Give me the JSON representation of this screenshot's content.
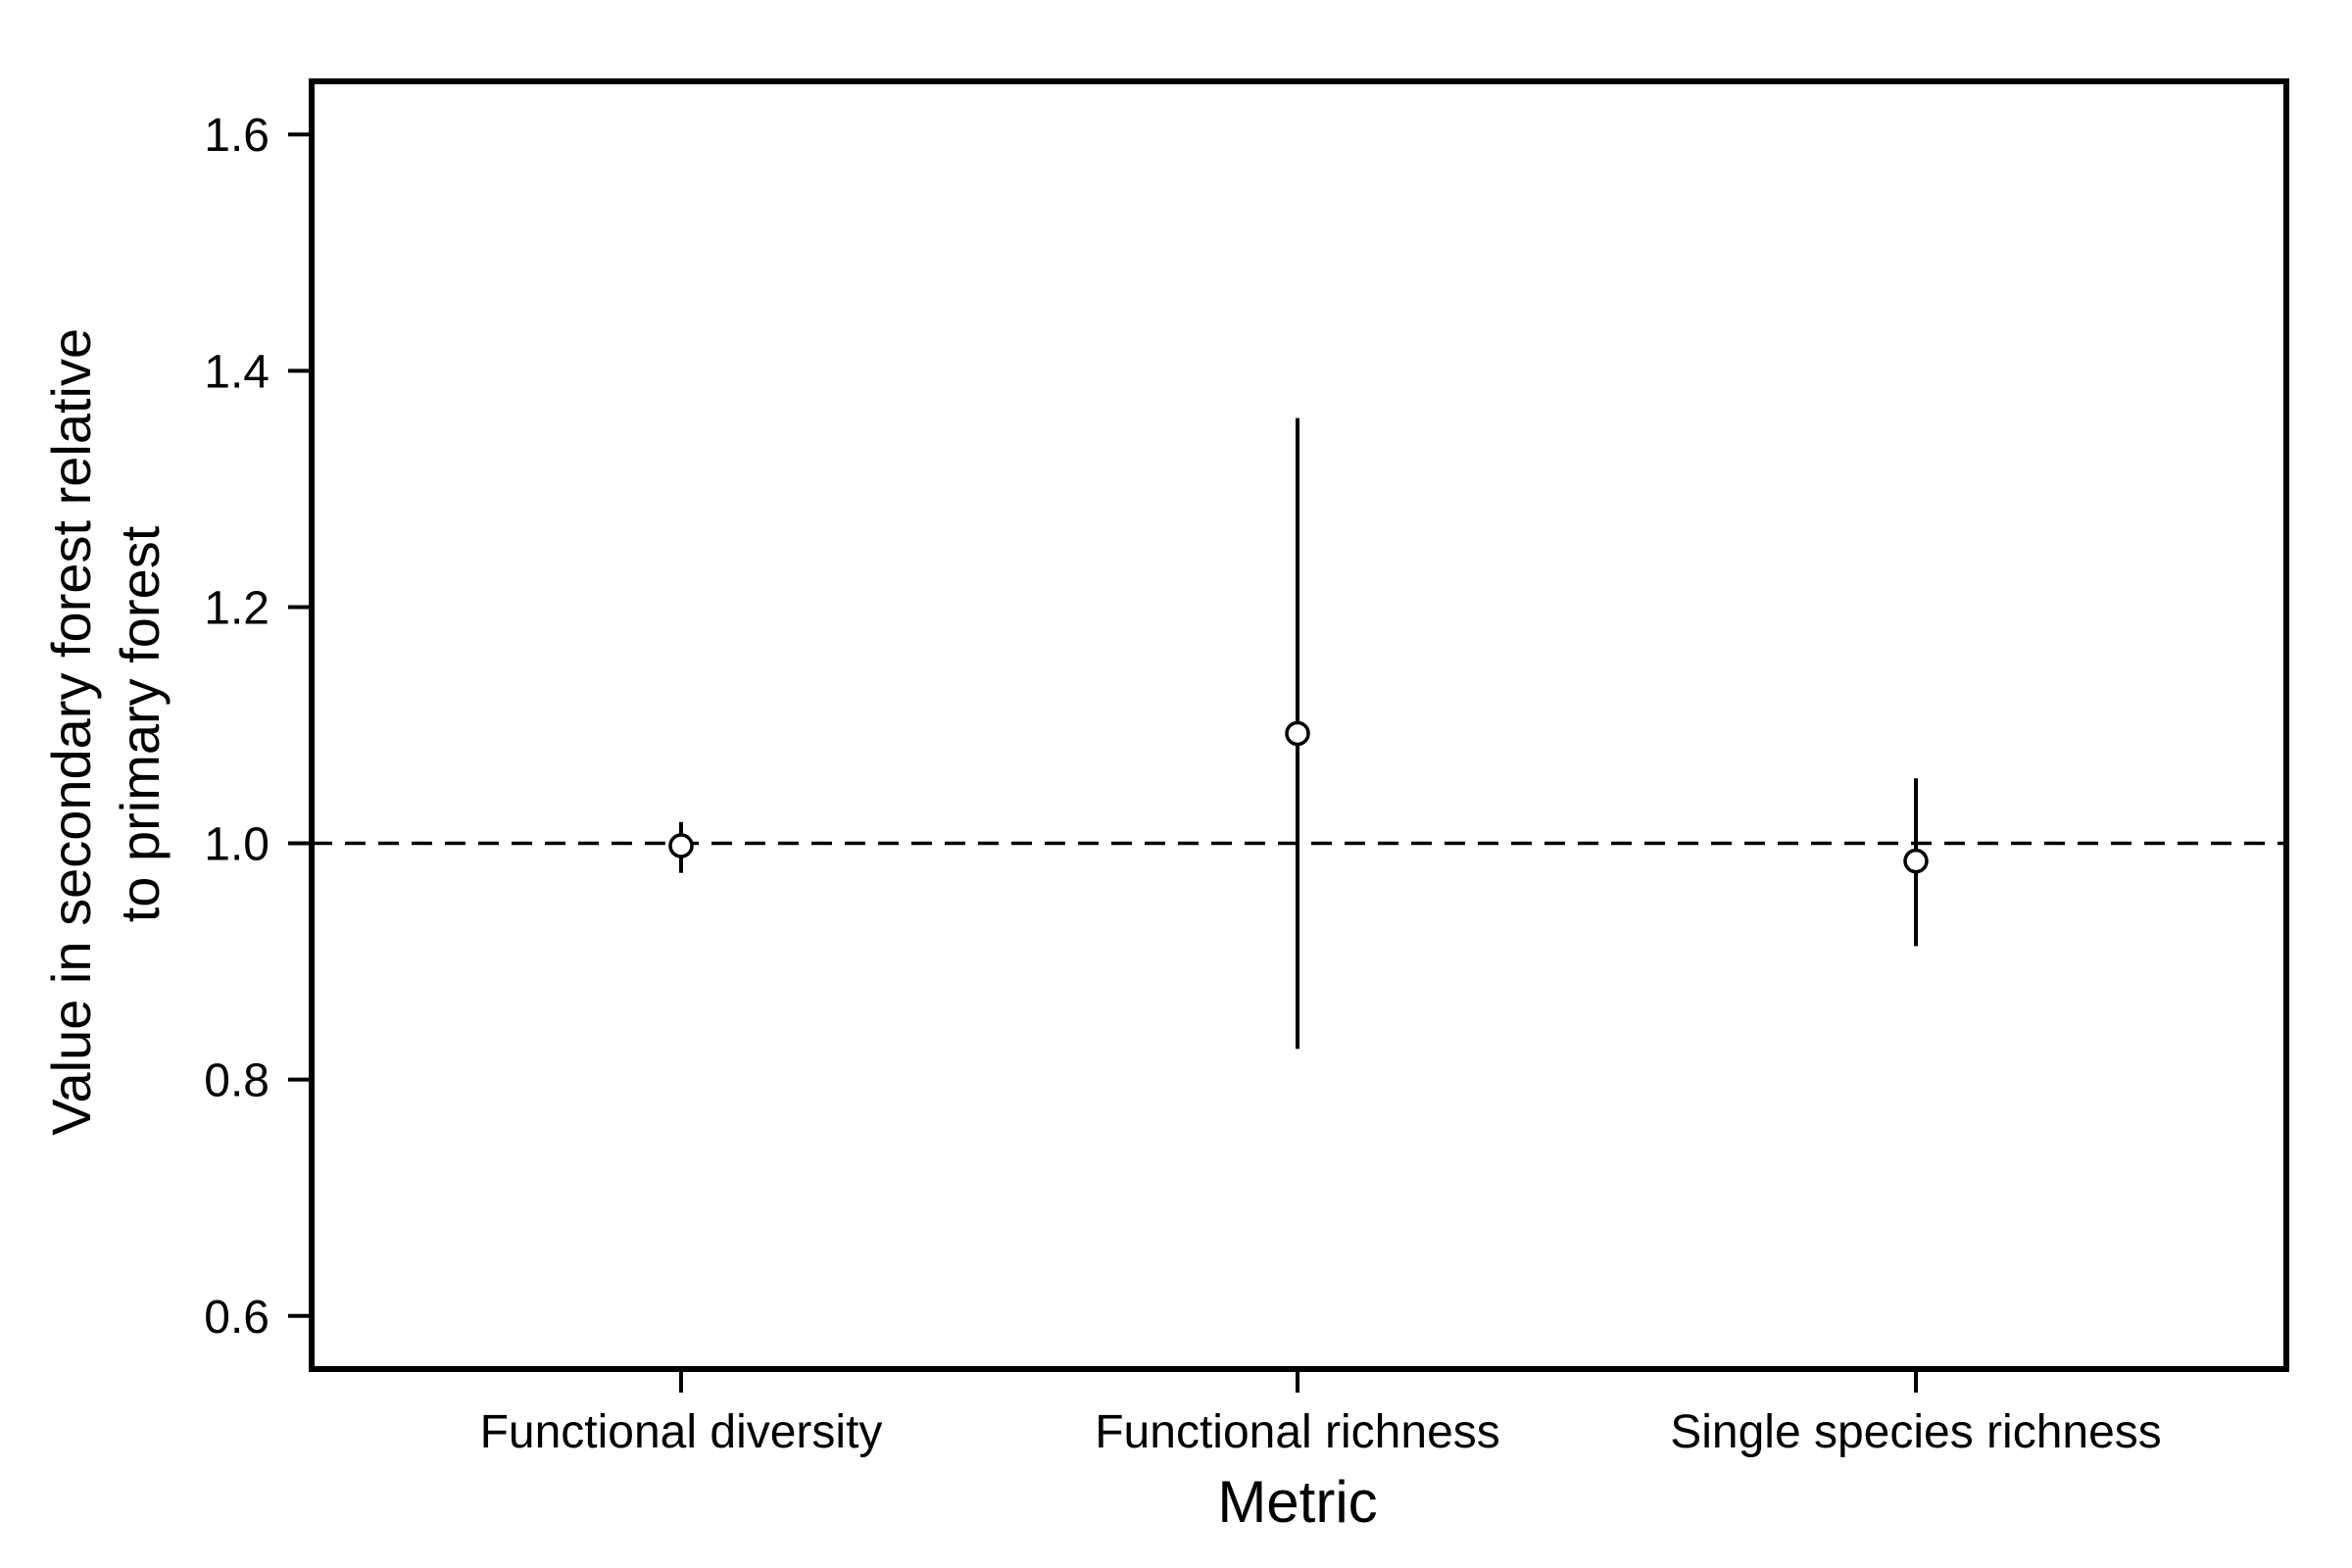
{
  "chart_data": {
    "type": "scatter",
    "title": "",
    "xlabel": "Metric",
    "ylabel_lines": [
      "Value in secondary forest relative",
      "to primary forest"
    ],
    "categories": [
      "Functional diversity",
      "Functional richness",
      "Single species richness"
    ],
    "points": [
      {
        "category": "Functional diversity",
        "value": 0.998,
        "lower": 0.975,
        "upper": 1.018
      },
      {
        "category": "Functional richness",
        "value": 1.093,
        "lower": 0.826,
        "upper": 1.36
      },
      {
        "category": "Single species richness",
        "value": 0.985,
        "lower": 0.913,
        "upper": 1.055
      }
    ],
    "reference_line": {
      "y": 1.0,
      "style": "dashed"
    },
    "ylim": [
      0.555,
      1.645
    ],
    "yticks": [
      0.6,
      0.8,
      1.0,
      1.2,
      1.4,
      1.6
    ],
    "ytick_labels": [
      "0.6",
      "0.8",
      "1.0",
      "1.2",
      "1.4",
      "1.6"
    ],
    "grid": false,
    "legend": "none",
    "colors": {
      "marks": "#000000",
      "background": "#ffffff"
    }
  }
}
